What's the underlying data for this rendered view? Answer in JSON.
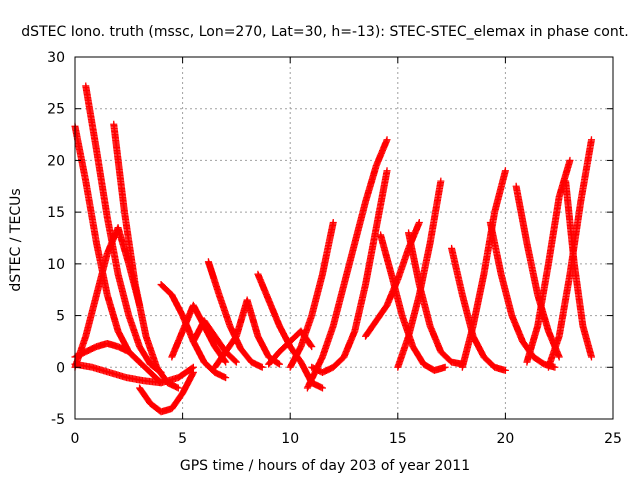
{
  "chart_data": {
    "type": "scatter",
    "title": "dSTEC Iono. truth (mssc, Lon=270, Lat=30, h=-13): STEC-STEC_elemax in phase cont.",
    "xlabel": "GPS time / hours of day 203 of year 2011",
    "ylabel": "dSTEC  / TECUs",
    "xlim": [
      0,
      25
    ],
    "ylim": [
      -5,
      30
    ],
    "xticks": [
      "0",
      "5",
      "10",
      "15",
      "20",
      "25"
    ],
    "yticks": [
      "-5",
      "0",
      "5",
      "10",
      "15",
      "20",
      "25",
      "30"
    ],
    "grid": true,
    "marker": "+",
    "colors": {
      "series": "#ff0000",
      "grid": "#a0a0a0",
      "frame": "#000000"
    },
    "series": [
      {
        "x": [
          0.0,
          0.5,
          1.0,
          1.5,
          2.0,
          2.5,
          3.0
        ],
        "y": [
          23.3,
          18.0,
          12.0,
          7.0,
          3.5,
          1.5,
          0.5
        ]
      },
      {
        "x": [
          0.5,
          1.0,
          1.5,
          2.0,
          2.5,
          3.0,
          3.5,
          4.0
        ],
        "y": [
          27.2,
          21.0,
          14.5,
          9.0,
          5.0,
          2.0,
          0.3,
          -0.5
        ]
      },
      {
        "x": [
          1.8,
          2.3,
          2.8,
          3.3,
          3.8,
          4.3,
          4.8
        ],
        "y": [
          23.5,
          15.0,
          8.0,
          3.0,
          0.0,
          -1.5,
          -2.0
        ]
      },
      {
        "x": [
          0.0,
          0.5,
          1.0,
          1.5,
          2.0,
          2.5,
          3.0
        ],
        "y": [
          0.0,
          3.0,
          7.0,
          11.0,
          13.5,
          10.0,
          6.0
        ]
      },
      {
        "x": [
          0.0,
          0.5,
          1.0,
          1.5,
          2.0,
          2.5,
          3.0,
          3.5,
          4.0
        ],
        "y": [
          1.0,
          1.5,
          2.0,
          2.3,
          2.0,
          1.5,
          0.5,
          -0.5,
          -1.5
        ]
      },
      {
        "x": [
          0.0,
          0.8,
          1.6,
          2.4,
          3.2,
          4.0,
          4.8,
          5.5
        ],
        "y": [
          0.3,
          0.0,
          -0.5,
          -1.0,
          -1.3,
          -1.5,
          -1.0,
          0.0
        ]
      },
      {
        "x": [
          3.0,
          3.5,
          4.0,
          4.5,
          5.0,
          5.5
        ],
        "y": [
          -2.0,
          -3.5,
          -4.3,
          -4.0,
          -2.5,
          -0.5
        ]
      },
      {
        "x": [
          4.0,
          4.5,
          5.0,
          5.5,
          6.0,
          6.5,
          7.0
        ],
        "y": [
          8.0,
          7.0,
          5.0,
          2.5,
          0.5,
          -0.5,
          -1.0
        ]
      },
      {
        "x": [
          4.5,
          5.0,
          5.5,
          6.0,
          6.5,
          7.0
        ],
        "y": [
          1.0,
          3.5,
          6.0,
          4.0,
          2.0,
          0.5
        ]
      },
      {
        "x": [
          6.2,
          6.7,
          7.2,
          7.7,
          8.2,
          8.7
        ],
        "y": [
          10.2,
          7.0,
          4.0,
          1.8,
          0.5,
          0.0
        ]
      },
      {
        "x": [
          5.5,
          6.0,
          6.5,
          7.0,
          7.5
        ],
        "y": [
          2.5,
          4.5,
          3.0,
          1.5,
          0.5
        ]
      },
      {
        "x": [
          6.5,
          7.0,
          7.5,
          8.0,
          8.5,
          9.0,
          9.5
        ],
        "y": [
          0.0,
          1.5,
          3.0,
          6.5,
          3.0,
          1.0,
          0.3
        ]
      },
      {
        "x": [
          8.5,
          9.0,
          9.5,
          10.0,
          10.5,
          11.0,
          11.5
        ],
        "y": [
          9.0,
          6.5,
          4.0,
          2.0,
          0.5,
          -1.5,
          -2.0
        ]
      },
      {
        "x": [
          9.0,
          9.5,
          10.0,
          10.5,
          11.0
        ],
        "y": [
          0.3,
          1.5,
          2.5,
          3.5,
          2.0
        ]
      },
      {
        "x": [
          10.8,
          11.5,
          12.0,
          12.5,
          13.0,
          13.5,
          14.0,
          14.5
        ],
        "y": [
          -2.0,
          1.0,
          4.0,
          8.0,
          12.0,
          16.0,
          19.5,
          22.0
        ]
      },
      {
        "x": [
          10.0,
          10.5,
          11.0,
          11.5,
          12.0
        ],
        "y": [
          0.0,
          2.0,
          5.0,
          9.0,
          14.0
        ]
      },
      {
        "x": [
          11.0,
          11.5,
          12.0,
          12.5,
          13.0,
          13.5,
          14.0,
          14.5
        ],
        "y": [
          0.0,
          -0.5,
          0.0,
          1.0,
          3.5,
          8.0,
          13.5,
          19.0
        ]
      },
      {
        "x": [
          13.5,
          14.0,
          14.5,
          15.0,
          15.5,
          16.0
        ],
        "y": [
          3.0,
          4.5,
          6.0,
          8.5,
          11.5,
          14.0
        ]
      },
      {
        "x": [
          14.2,
          14.7,
          15.2,
          15.7,
          16.2,
          16.7,
          17.2
        ],
        "y": [
          12.8,
          9.0,
          5.0,
          2.0,
          0.3,
          -0.3,
          0.0
        ]
      },
      {
        "x": [
          15.5,
          16.0,
          16.5,
          17.0,
          17.5,
          18.0
        ],
        "y": [
          13.0,
          8.0,
          4.0,
          1.5,
          0.5,
          0.3
        ]
      },
      {
        "x": [
          15.0,
          15.5,
          16.0,
          16.5,
          17.0
        ],
        "y": [
          0.0,
          3.0,
          7.0,
          12.0,
          18.0
        ]
      },
      {
        "x": [
          17.5,
          18.0,
          18.5,
          19.0,
          19.5,
          20.0
        ],
        "y": [
          11.5,
          7.0,
          3.0,
          1.0,
          0.0,
          -0.3
        ]
      },
      {
        "x": [
          18.0,
          18.5,
          19.0,
          19.5,
          20.0
        ],
        "y": [
          0.0,
          4.0,
          9.0,
          15.0,
          19.0
        ]
      },
      {
        "x": [
          19.3,
          19.8,
          20.3,
          20.8,
          21.3,
          21.8,
          22.3
        ],
        "y": [
          14.0,
          9.0,
          5.0,
          2.5,
          1.0,
          0.3,
          0.0
        ]
      },
      {
        "x": [
          20.5,
          21.0,
          21.5,
          22.0,
          22.5
        ],
        "y": [
          17.5,
          12.0,
          7.0,
          3.5,
          1.0
        ]
      },
      {
        "x": [
          21.0,
          21.5,
          22.0,
          22.5,
          23.0
        ],
        "y": [
          0.5,
          4.0,
          10.0,
          16.5,
          20.0
        ]
      },
      {
        "x": [
          22.0,
          22.5,
          23.0,
          23.5,
          24.0
        ],
        "y": [
          0.0,
          3.0,
          9.0,
          16.0,
          22.0
        ]
      },
      {
        "x": [
          22.8,
          23.2,
          23.6,
          24.0
        ],
        "y": [
          18.0,
          10.0,
          4.0,
          1.0
        ]
      }
    ]
  }
}
